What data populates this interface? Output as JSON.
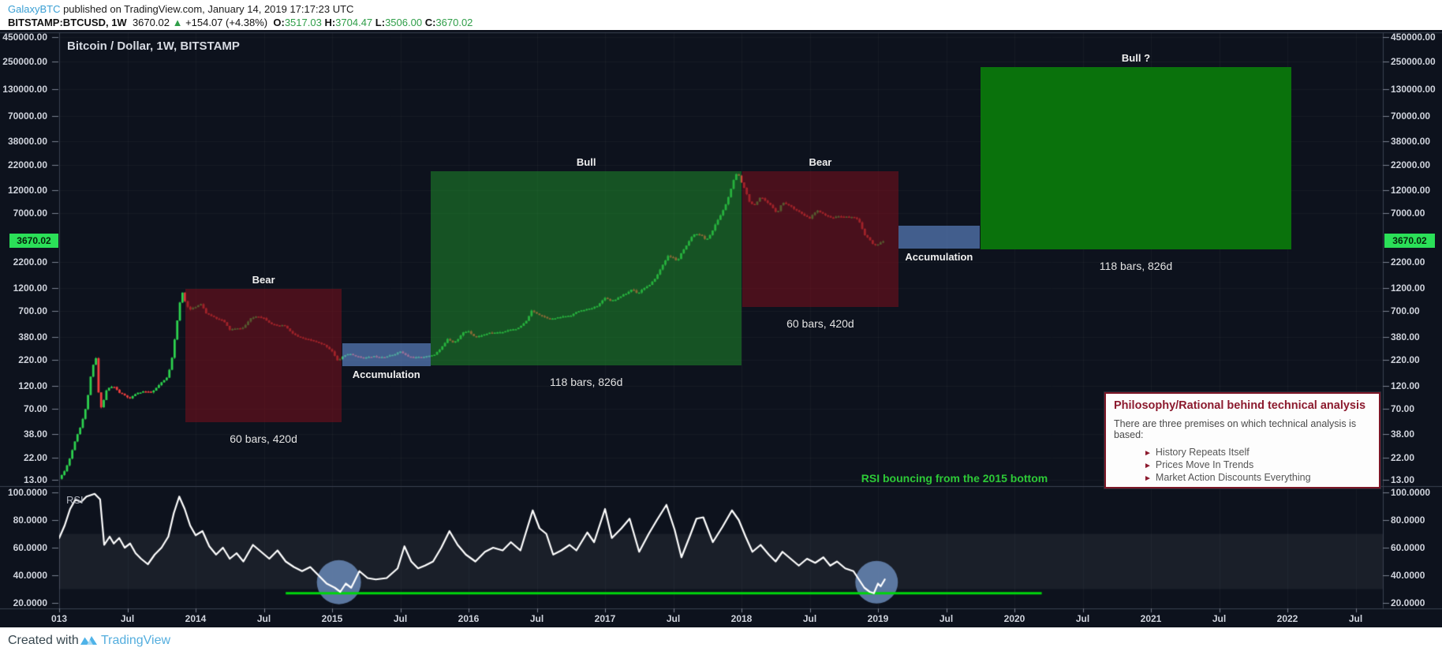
{
  "header": {
    "username": "GalaxyBTC",
    "published": " published on TradingView.com, January 14, 2019 17:17:23 UTC",
    "symbol": "BITSTAMP:BTCUSD, 1W",
    "last_price_text": "3670.02",
    "direction_icon": "▲",
    "change": "+154.07 (+4.38%)",
    "ohlc": [
      {
        "label": "O:",
        "value": "3517.03"
      },
      {
        "label": "H:",
        "value": "3704.47"
      },
      {
        "label": "L:",
        "value": "3506.00"
      },
      {
        "label": "C:",
        "value": "3670.02"
      }
    ]
  },
  "chart": {
    "title": "Bitcoin / Dollar, 1W, BITSTAMP",
    "rsi_label": "RSI",
    "rsi_caption": "RSI bouncing from the 2015 bottom",
    "last_price_label": "3670.02",
    "philosophy": {
      "title": "Philosophy/Rational behind technical analysis",
      "intro": "There are three premises on which technical analysis is based:",
      "bullet_icon": "►",
      "bullets": [
        "History Repeats Itself",
        "Prices Move In Trends",
        "Market Action Discounts Everything"
      ]
    }
  },
  "footer": {
    "created_with": "Created with",
    "brand": "TradingView"
  },
  "colors": {
    "up": "#2dd14e",
    "down": "#f23f3f",
    "bg": "#0d121d",
    "axis_line": "#3a4150",
    "tick": "#7a8190",
    "tag_bg": "#2be058",
    "rsi_line": "#ffffff",
    "support_line": "#00d60c",
    "circle": "rgba(104,136,182,0.85)",
    "band": "rgba(255,255,255,0.055)"
  },
  "chart_data": {
    "type": "candlestick",
    "title": "Bitcoin / Dollar, 1W, BITSTAMP",
    "symbol": "BTCUSD",
    "timeframe": "1W",
    "scale": "log",
    "price_axis": {
      "ticks": [
        "450000.00",
        "250000.00",
        "130000.00",
        "70000.00",
        "38000.00",
        "22000.00",
        "12000.00",
        "7000.00",
        "2200.00",
        "1200.00",
        "700.00",
        "380.00",
        "220.00",
        "120.00",
        "70.00",
        "38.00",
        "22.00",
        "13.00"
      ],
      "last_price": 3670.02
    },
    "time_axis": {
      "labels": [
        "013",
        "Jul",
        "2014",
        "Jul",
        "2015",
        "Jul",
        "2016",
        "Jul",
        "2017",
        "Jul",
        "2018",
        "Jul",
        "2019",
        "Jul",
        "2020",
        "Jul",
        "2021",
        "Jul",
        "2022",
        "Jul"
      ],
      "start_year": 2013,
      "interval": "6M"
    },
    "price_keypoints": [
      [
        2013.0,
        13.3
      ],
      [
        2013.04,
        16
      ],
      [
        2013.08,
        22
      ],
      [
        2013.12,
        34
      ],
      [
        2013.16,
        47
      ],
      [
        2013.2,
        75
      ],
      [
        2013.24,
        180
      ],
      [
        2013.27,
        230
      ],
      [
        2013.29,
        95
      ],
      [
        2013.31,
        70
      ],
      [
        2013.35,
        112
      ],
      [
        2013.4,
        118
      ],
      [
        2013.44,
        102
      ],
      [
        2013.48,
        95
      ],
      [
        2013.52,
        88
      ],
      [
        2013.56,
        99
      ],
      [
        2013.62,
        105
      ],
      [
        2013.68,
        102
      ],
      [
        2013.74,
        125
      ],
      [
        2013.79,
        145
      ],
      [
        2013.82,
        200
      ],
      [
        2013.85,
        390
      ],
      [
        2013.88,
        780
      ],
      [
        2013.9,
        1120
      ],
      [
        2013.93,
        820
      ],
      [
        2013.96,
        720
      ],
      [
        2014.0,
        770
      ],
      [
        2014.04,
        830
      ],
      [
        2014.08,
        650
      ],
      [
        2014.12,
        620
      ],
      [
        2014.16,
        580
      ],
      [
        2014.2,
        560
      ],
      [
        2014.25,
        450
      ],
      [
        2014.3,
        460
      ],
      [
        2014.35,
        470
      ],
      [
        2014.4,
        580
      ],
      [
        2014.45,
        620
      ],
      [
        2014.5,
        590
      ],
      [
        2014.55,
        520
      ],
      [
        2014.6,
        490
      ],
      [
        2014.65,
        500
      ],
      [
        2014.7,
        420
      ],
      [
        2014.75,
        380
      ],
      [
        2014.8,
        360
      ],
      [
        2014.85,
        350
      ],
      [
        2014.9,
        330
      ],
      [
        2014.95,
        310
      ],
      [
        2015.0,
        270
      ],
      [
        2015.04,
        215
      ],
      [
        2015.08,
        240
      ],
      [
        2015.12,
        255
      ],
      [
        2015.16,
        245
      ],
      [
        2015.2,
        235
      ],
      [
        2015.25,
        232
      ],
      [
        2015.3,
        240
      ],
      [
        2015.35,
        236
      ],
      [
        2015.4,
        238
      ],
      [
        2015.45,
        250
      ],
      [
        2015.5,
        268
      ],
      [
        2015.55,
        240
      ],
      [
        2015.6,
        232
      ],
      [
        2015.65,
        236
      ],
      [
        2015.7,
        240
      ],
      [
        2015.75,
        250
      ],
      [
        2015.8,
        290
      ],
      [
        2015.85,
        370
      ],
      [
        2015.88,
        330
      ],
      [
        2015.92,
        355
      ],
      [
        2015.96,
        420
      ],
      [
        2016.0,
        434
      ],
      [
        2016.05,
        375
      ],
      [
        2016.1,
        395
      ],
      [
        2016.15,
        415
      ],
      [
        2016.2,
        420
      ],
      [
        2016.25,
        425
      ],
      [
        2016.3,
        450
      ],
      [
        2016.36,
        460
      ],
      [
        2016.42,
        540
      ],
      [
        2016.46,
        700
      ],
      [
        2016.5,
        660
      ],
      [
        2016.54,
        620
      ],
      [
        2016.58,
        590
      ],
      [
        2016.62,
        580
      ],
      [
        2016.66,
        600
      ],
      [
        2016.7,
        615
      ],
      [
        2016.75,
        630
      ],
      [
        2016.8,
        690
      ],
      [
        2016.85,
        720
      ],
      [
        2016.9,
        740
      ],
      [
        2016.95,
        800
      ],
      [
        2017.0,
        960
      ],
      [
        2017.04,
        890
      ],
      [
        2017.08,
        920
      ],
      [
        2017.12,
        1000
      ],
      [
        2017.16,
        1060
      ],
      [
        2017.2,
        1180
      ],
      [
        2017.24,
        1050
      ],
      [
        2017.28,
        1190
      ],
      [
        2017.33,
        1290
      ],
      [
        2017.38,
        1600
      ],
      [
        2017.42,
        2050
      ],
      [
        2017.46,
        2550
      ],
      [
        2017.5,
        2450
      ],
      [
        2017.53,
        2250
      ],
      [
        2017.56,
        2750
      ],
      [
        2017.6,
        3300
      ],
      [
        2017.64,
        4150
      ],
      [
        2017.68,
        4350
      ],
      [
        2017.71,
        4100
      ],
      [
        2017.74,
        3700
      ],
      [
        2017.78,
        4400
      ],
      [
        2017.82,
        5800
      ],
      [
        2017.86,
        7200
      ],
      [
        2017.9,
        9800
      ],
      [
        2017.94,
        15000
      ],
      [
        2017.97,
        18600
      ],
      [
        2018.0,
        14500
      ],
      [
        2018.03,
        12000
      ],
      [
        2018.06,
        9000
      ],
      [
        2018.1,
        8500
      ],
      [
        2018.14,
        10300
      ],
      [
        2018.18,
        9200
      ],
      [
        2018.22,
        8300
      ],
      [
        2018.26,
        7000
      ],
      [
        2018.3,
        9100
      ],
      [
        2018.34,
        8600
      ],
      [
        2018.38,
        7900
      ],
      [
        2018.42,
        7300
      ],
      [
        2018.46,
        6600
      ],
      [
        2018.5,
        6200
      ],
      [
        2018.53,
        7000
      ],
      [
        2018.56,
        7450
      ],
      [
        2018.6,
        6900
      ],
      [
        2018.64,
        6400
      ],
      [
        2018.68,
        6350
      ],
      [
        2018.72,
        6550
      ],
      [
        2018.76,
        6450
      ],
      [
        2018.8,
        6400
      ],
      [
        2018.84,
        6350
      ],
      [
        2018.87,
        5500
      ],
      [
        2018.9,
        4200
      ],
      [
        2018.93,
        3900
      ],
      [
        2018.96,
        3400
      ],
      [
        2018.99,
        3250
      ],
      [
        2019.02,
        3550
      ],
      [
        2019.05,
        3670
      ]
    ],
    "rsi": {
      "ticks": [
        "100.0000",
        "80.0000",
        "60.0000",
        "40.0000",
        "20.0000"
      ],
      "band": [
        30,
        70
      ],
      "support_line": {
        "t0": 2014.66,
        "t1": 2020.2,
        "value": 27
      },
      "circles": [
        {
          "t": 2015.05,
          "value": 35,
          "r": 28
        },
        {
          "t": 2018.99,
          "value": 35,
          "r": 27
        }
      ],
      "keypoints": [
        [
          2013.0,
          67
        ],
        [
          2013.04,
          76
        ],
        [
          2013.08,
          88
        ],
        [
          2013.12,
          95
        ],
        [
          2013.16,
          93
        ],
        [
          2013.2,
          97
        ],
        [
          2013.26,
          99
        ],
        [
          2013.3,
          95
        ],
        [
          2013.33,
          62
        ],
        [
          2013.37,
          68
        ],
        [
          2013.4,
          63
        ],
        [
          2013.44,
          67
        ],
        [
          2013.48,
          60
        ],
        [
          2013.52,
          63
        ],
        [
          2013.56,
          56
        ],
        [
          2013.6,
          52
        ],
        [
          2013.65,
          48
        ],
        [
          2013.7,
          55
        ],
        [
          2013.75,
          60
        ],
        [
          2013.8,
          68
        ],
        [
          2013.84,
          85
        ],
        [
          2013.88,
          97
        ],
        [
          2013.92,
          88
        ],
        [
          2013.96,
          76
        ],
        [
          2014.0,
          69
        ],
        [
          2014.05,
          72
        ],
        [
          2014.1,
          61
        ],
        [
          2014.15,
          55
        ],
        [
          2014.2,
          60
        ],
        [
          2014.25,
          52
        ],
        [
          2014.3,
          56
        ],
        [
          2014.35,
          50
        ],
        [
          2014.42,
          62
        ],
        [
          2014.48,
          57
        ],
        [
          2014.54,
          52
        ],
        [
          2014.6,
          58
        ],
        [
          2014.66,
          50
        ],
        [
          2014.72,
          46
        ],
        [
          2014.78,
          43
        ],
        [
          2014.84,
          46
        ],
        [
          2014.9,
          40
        ],
        [
          2014.96,
          34
        ],
        [
          2015.02,
          31
        ],
        [
          2015.06,
          28
        ],
        [
          2015.1,
          34
        ],
        [
          2015.14,
          31
        ],
        [
          2015.2,
          43
        ],
        [
          2015.26,
          38
        ],
        [
          2015.32,
          37
        ],
        [
          2015.4,
          38
        ],
        [
          2015.48,
          45
        ],
        [
          2015.53,
          61
        ],
        [
          2015.58,
          50
        ],
        [
          2015.63,
          45
        ],
        [
          2015.68,
          47
        ],
        [
          2015.74,
          50
        ],
        [
          2015.8,
          60
        ],
        [
          2015.86,
          72
        ],
        [
          2015.92,
          62
        ],
        [
          2015.98,
          55
        ],
        [
          2016.05,
          50
        ],
        [
          2016.12,
          57
        ],
        [
          2016.18,
          60
        ],
        [
          2016.25,
          58
        ],
        [
          2016.31,
          64
        ],
        [
          2016.38,
          58
        ],
        [
          2016.47,
          87
        ],
        [
          2016.52,
          74
        ],
        [
          2016.57,
          70
        ],
        [
          2016.62,
          55
        ],
        [
          2016.68,
          58
        ],
        [
          2016.74,
          62
        ],
        [
          2016.79,
          58
        ],
        [
          2016.87,
          71
        ],
        [
          2016.92,
          64
        ],
        [
          2017.0,
          88
        ],
        [
          2017.05,
          67
        ],
        [
          2017.12,
          74
        ],
        [
          2017.18,
          81
        ],
        [
          2017.25,
          57
        ],
        [
          2017.32,
          70
        ],
        [
          2017.38,
          80
        ],
        [
          2017.45,
          91
        ],
        [
          2017.51,
          73
        ],
        [
          2017.56,
          53
        ],
        [
          2017.62,
          68
        ],
        [
          2017.67,
          81
        ],
        [
          2017.72,
          82
        ],
        [
          2017.79,
          64
        ],
        [
          2017.86,
          75
        ],
        [
          2017.93,
          87
        ],
        [
          2017.98,
          80
        ],
        [
          2018.03,
          68
        ],
        [
          2018.08,
          57
        ],
        [
          2018.14,
          62
        ],
        [
          2018.2,
          55
        ],
        [
          2018.25,
          50
        ],
        [
          2018.3,
          57
        ],
        [
          2018.36,
          52
        ],
        [
          2018.42,
          47
        ],
        [
          2018.48,
          52
        ],
        [
          2018.54,
          49
        ],
        [
          2018.6,
          53
        ],
        [
          2018.65,
          47
        ],
        [
          2018.7,
          50
        ],
        [
          2018.76,
          45
        ],
        [
          2018.82,
          43
        ],
        [
          2018.86,
          37
        ],
        [
          2018.9,
          31
        ],
        [
          2018.94,
          28
        ],
        [
          2018.97,
          27
        ],
        [
          2019.0,
          34
        ],
        [
          2019.02,
          32
        ],
        [
          2019.05,
          37
        ]
      ]
    },
    "annotations": [
      {
        "id": "bear-1",
        "kind": "bear",
        "label": "Bear",
        "sublabel": "60 bars, 420d",
        "t0": 2013.925,
        "t1": 2015.07,
        "price_low": 51,
        "price_high": 1185
      },
      {
        "id": "accum-1",
        "kind": "accumulation",
        "label": "Accumulation",
        "sublabel": "",
        "t0": 2015.075,
        "t1": 2015.72,
        "price_low": 190,
        "price_high": 326
      },
      {
        "id": "bull-1",
        "kind": "bull",
        "label": "Bull",
        "sublabel": "118 bars, 826d",
        "t0": 2015.725,
        "t1": 2018.0,
        "price_low": 193,
        "price_high": 18870
      },
      {
        "id": "bear-2",
        "kind": "bear",
        "label": "Bear",
        "sublabel": "60 bars, 420d",
        "t0": 2018.005,
        "t1": 2019.15,
        "price_low": 766,
        "price_high": 19000
      },
      {
        "id": "accum-2",
        "kind": "accumulation",
        "label": "Accumulation",
        "sublabel": "",
        "t0": 2019.15,
        "t1": 2019.745,
        "price_low": 3030,
        "price_high": 5180
      },
      {
        "id": "bull-2",
        "kind": "bull-projection",
        "label": "Bull ?",
        "sublabel": "118 bars, 826d",
        "t0": 2019.75,
        "t1": 2022.03,
        "price_low": 2985,
        "price_high": 221600
      }
    ]
  }
}
